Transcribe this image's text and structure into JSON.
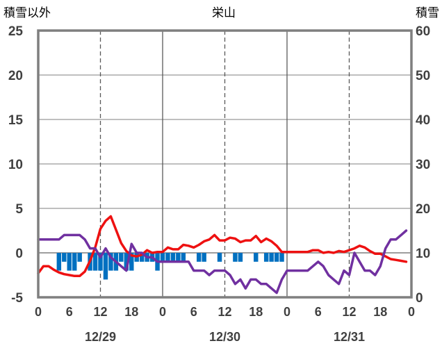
{
  "chart_data": {
    "type": "line+bar",
    "title": "栄山",
    "ylabel_left": "積雪以外",
    "ylabel_right": "積雪",
    "ylim_left": [
      -5,
      25
    ],
    "yticks_left": [
      "25",
      "20",
      "15",
      "10",
      "5",
      "0",
      "-5"
    ],
    "ylim_right": [
      0,
      60
    ],
    "yticks_right": [
      "60",
      "50",
      "40",
      "30",
      "20",
      "10",
      "0"
    ],
    "xlim_hours": [
      0,
      72
    ],
    "xticks": [
      "0",
      "6",
      "12",
      "18",
      "0",
      "6",
      "12",
      "18",
      "0",
      "6",
      "12",
      "18",
      "0"
    ],
    "dates": [
      "12/29",
      "12/30",
      "12/31"
    ],
    "series": [
      {
        "name": "red",
        "color": "#ee1111",
        "x": [
          0,
          1,
          2,
          3,
          4,
          5,
          6,
          7,
          8,
          9,
          10,
          11,
          12,
          13,
          14,
          15,
          16,
          17,
          18,
          19,
          20,
          21,
          22,
          23,
          24,
          25,
          26,
          27,
          28,
          29,
          30,
          31,
          32,
          33,
          34,
          35,
          36,
          37,
          38,
          39,
          40,
          41,
          42,
          43,
          44,
          45,
          46,
          47,
          48,
          49,
          50,
          51,
          52,
          53,
          54,
          55,
          56,
          57,
          58,
          59,
          60,
          61,
          62,
          63,
          64,
          65,
          66,
          67,
          68,
          69,
          70,
          71
        ],
        "values": [
          -2.3,
          -1.5,
          -1.5,
          -1.9,
          -2.2,
          -2.4,
          -2.5,
          -2.6,
          -2.6,
          -2.1,
          -0.9,
          0.6,
          2.7,
          3.6,
          4.1,
          2.6,
          1.1,
          0.2,
          -0.3,
          -0.4,
          -0.2,
          0.3,
          0.0,
          0.1,
          0.1,
          0.6,
          0.4,
          0.4,
          0.9,
          0.8,
          0.6,
          0.9,
          1.3,
          1.5,
          2.0,
          1.4,
          1.4,
          1.7,
          1.6,
          1.2,
          1.4,
          1.4,
          1.9,
          1.2,
          1.6,
          1.3,
          0.8,
          0.1,
          0.1,
          0.1,
          0.1,
          0.1,
          0.1,
          0.3,
          0.3,
          0.0,
          0.1,
          0.0,
          0.2,
          0.1,
          0.3,
          0.5,
          0.8,
          0.6,
          0.2,
          -0.1,
          -0.1,
          -0.4,
          -0.7,
          -0.8,
          -0.9,
          -1.0
        ]
      },
      {
        "name": "purple",
        "color": "#7030a0",
        "x": [
          0,
          1,
          2,
          3,
          4,
          5,
          6,
          7,
          8,
          9,
          10,
          11,
          12,
          13,
          14,
          15,
          16,
          17,
          18,
          19,
          20,
          21,
          22,
          23,
          24,
          25,
          26,
          27,
          28,
          29,
          30,
          31,
          32,
          33,
          34,
          35,
          36,
          37,
          38,
          39,
          40,
          41,
          42,
          43,
          44,
          45,
          46,
          47,
          48,
          49,
          50,
          51,
          52,
          53,
          54,
          55,
          56,
          57,
          58,
          59,
          60,
          61,
          62,
          63,
          64,
          65,
          66,
          67,
          68,
          69,
          70,
          71
        ],
        "values": [
          1.5,
          1.5,
          1.5,
          1.5,
          1.5,
          2.0,
          2.0,
          2.0,
          2.0,
          1.5,
          0.5,
          0.5,
          -0.5,
          0.5,
          -0.5,
          -1.0,
          -1.5,
          -2.0,
          1.0,
          0.0,
          0.0,
          -0.5,
          -0.5,
          -1.0,
          -1.0,
          -1.0,
          -1.0,
          -1.0,
          -1.0,
          -1.0,
          -2.0,
          -2.0,
          -2.0,
          -2.5,
          -2.0,
          -2.0,
          -2.0,
          -2.5,
          -3.5,
          -3.0,
          -4.0,
          -3.0,
          -3.0,
          -3.5,
          -3.5,
          -4.0,
          -4.5,
          -3.0,
          -2.0,
          -2.0,
          -2.0,
          -2.0,
          -2.0,
          -1.5,
          -1.0,
          -1.5,
          -2.5,
          -3.0,
          -3.5,
          -2.0,
          -2.5,
          0.0,
          -1.0,
          -2.0,
          -2.0,
          -2.5,
          -1.5,
          0.5,
          1.5,
          1.5,
          2.0,
          2.5
        ]
      }
    ],
    "bars": {
      "name": "blue",
      "color": "#0070c0",
      "x": [
        4,
        5,
        6,
        7,
        8,
        10,
        11,
        12,
        13,
        14,
        15,
        16,
        17,
        18,
        19,
        20,
        21,
        22,
        23,
        24,
        25,
        26,
        27,
        28,
        31,
        32,
        35,
        38,
        39,
        42,
        44,
        45,
        46,
        47
      ],
      "values": [
        -2.0,
        -1.0,
        -2.0,
        -2.0,
        -1.0,
        -2.0,
        -2.0,
        -2.0,
        -3.0,
        -2.0,
        -2.0,
        -1.0,
        -2.0,
        -2.0,
        -1.0,
        -1.0,
        -1.0,
        -1.0,
        -2.0,
        -1.0,
        -1.0,
        -1.0,
        -1.0,
        -1.0,
        -1.0,
        -1.0,
        -1.0,
        -1.0,
        -1.0,
        -1.0,
        -1.0,
        -1.0,
        -1.0,
        -1.0
      ]
    }
  }
}
